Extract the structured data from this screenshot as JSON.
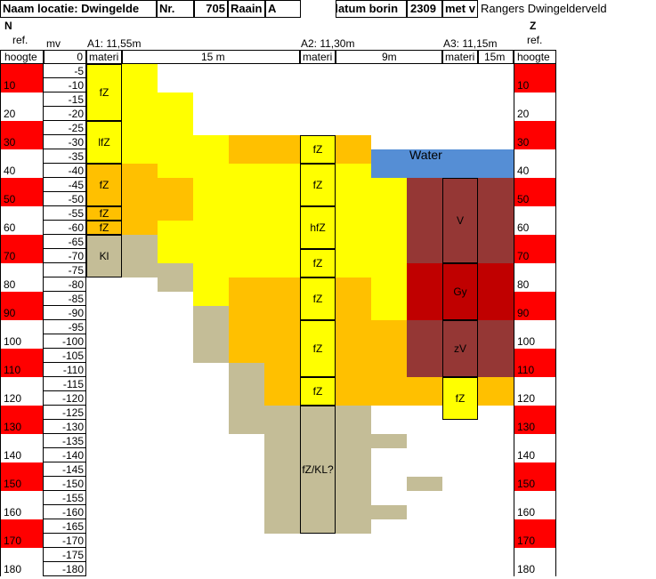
{
  "header": {
    "title": "Naam locatie: Dwingelde",
    "nr_label": "Nr.",
    "nr_value": "705",
    "raai_label": "Raain",
    "raai_value": "A",
    "date_label": "datum borin",
    "date_value": "2309",
    "met_label": "met v",
    "organisation": "Rangers Dwingelderveld"
  },
  "left_axis": {
    "direction": "N",
    "ref_label": "ref.",
    "hoogte_label": "hoogte",
    "mv_label": "mv",
    "zero_label": "0",
    "values": [
      "10",
      "20",
      "30",
      "40",
      "50",
      "60",
      "70",
      "80",
      "90",
      "100",
      "110",
      "120",
      "130",
      "140",
      "150",
      "160",
      "170",
      "180"
    ]
  },
  "right_axis": {
    "direction": "Z",
    "ref_label": "ref.",
    "hoogte_label": "hoogte",
    "values": [
      "10",
      "20",
      "30",
      "40",
      "50",
      "60",
      "70",
      "80",
      "90",
      "100",
      "110",
      "120",
      "130",
      "140",
      "150",
      "160",
      "170",
      "180"
    ]
  },
  "depths": [
    "-5",
    "-10",
    "-15",
    "-20",
    "-25",
    "-30",
    "-35",
    "-40",
    "-45",
    "-50",
    "-55",
    "-60",
    "-65",
    "-70",
    "-75",
    "-80",
    "-85",
    "-90",
    "-95",
    "-100",
    "-105",
    "-110",
    "-115",
    "-120",
    "-125",
    "-130",
    "-135",
    "-140",
    "-145",
    "-150",
    "-155",
    "-160",
    "-165",
    "-170",
    "-175",
    "-180"
  ],
  "boreholes": [
    {
      "name": "A1: 11,55m",
      "mat_label": "materi",
      "distance_label": "15 m",
      "layers": [
        {
          "label": "fZ"
        },
        {
          "label": "lfZ"
        },
        {
          "label": "fZ"
        },
        {
          "label": "fZ"
        },
        {
          "label": "fZ"
        },
        {
          "label": "Kl"
        }
      ]
    },
    {
      "name": "A2: 11,30m",
      "mat_label": "materi",
      "distance_label": "9m",
      "layers": [
        {
          "label": "fZ"
        },
        {
          "label": "fZ"
        },
        {
          "label": "hfZ"
        },
        {
          "label": "fZ"
        },
        {
          "label": "fZ"
        },
        {
          "label": "fZ"
        },
        {
          "label": "fZ"
        },
        {
          "label": "fZ/KL?"
        }
      ]
    },
    {
      "name": "A3: 11,15m",
      "mat_label": "materi",
      "distance_label": "15m",
      "layers": [
        {
          "label": "V"
        },
        {
          "label": "Gy"
        },
        {
          "label": "zV"
        },
        {
          "label": "fZ"
        }
      ]
    }
  ],
  "water_label": "Water",
  "colors": {
    "yellow": "#ffff00",
    "orange": "#ffc000",
    "khaki": "#c4bd97",
    "brown": "#953735",
    "darkred": "#c00000",
    "blue": "#558ed5",
    "red": "#ff0000"
  }
}
